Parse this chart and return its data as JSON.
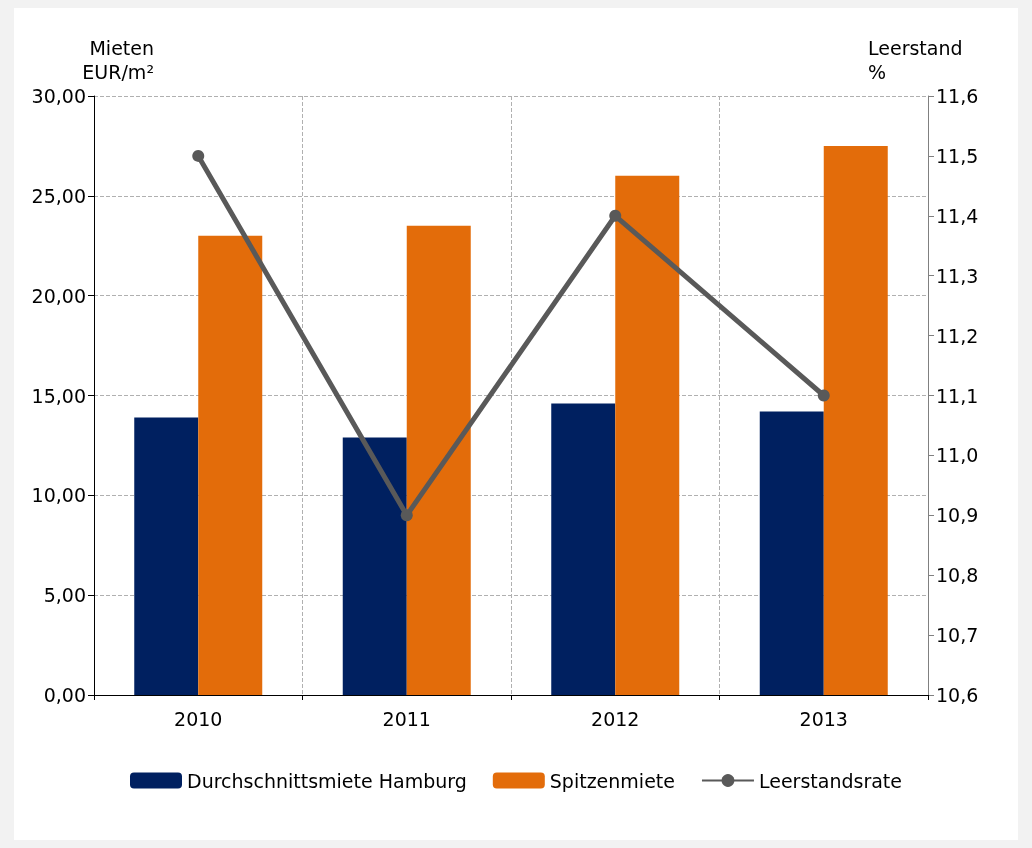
{
  "chart_data": {
    "type": "bar",
    "ylabel": "Mieten\nEUR/m²",
    "y2label": "Leerstand\n%",
    "categories": [
      "2010",
      "2011",
      "2012",
      "2013"
    ],
    "series": [
      {
        "name": "Durchschnittsmiete Hamburg",
        "color": "#002060",
        "values": [
          13.9,
          12.9,
          14.6,
          14.2
        ]
      },
      {
        "name": "Spitzenmiete",
        "color": "#e36c0a",
        "values": [
          23.0,
          23.5,
          26.0,
          27.5
        ]
      },
      {
        "name": "Leerstandsrate",
        "type": "line",
        "axis": "y2",
        "color": "#595959",
        "marker": "circle",
        "line_style": "solid",
        "values": [
          11.5,
          10.9,
          11.4,
          11.1
        ]
      }
    ],
    "ylim": [
      0,
      30
    ],
    "yticks": [
      {
        "value": 0,
        "label": "0,00"
      },
      {
        "value": 5,
        "label": "5,00"
      },
      {
        "value": 10,
        "label": "10,00"
      },
      {
        "value": 15,
        "label": "15,00"
      },
      {
        "value": 20,
        "label": "20,00"
      },
      {
        "value": 25,
        "label": "25,00"
      },
      {
        "value": 30,
        "label": "30,00"
      }
    ],
    "y2lim": [
      10.6,
      11.6
    ],
    "y2ticks": [
      {
        "value": 10.6,
        "label": "10,6"
      },
      {
        "value": 10.7,
        "label": "10,7"
      },
      {
        "value": 10.8,
        "label": "10,8"
      },
      {
        "value": 10.9,
        "label": "10,9"
      },
      {
        "value": 11.0,
        "label": "11,0"
      },
      {
        "value": 11.1,
        "label": "11,1"
      },
      {
        "value": 11.2,
        "label": "11,2"
      },
      {
        "value": 11.3,
        "label": "11,3"
      },
      {
        "value": 11.4,
        "label": "11,4"
      },
      {
        "value": 11.5,
        "label": "11,5"
      },
      {
        "value": 11.6,
        "label": "11,6"
      }
    ],
    "grid": true,
    "legend": "bottom"
  }
}
